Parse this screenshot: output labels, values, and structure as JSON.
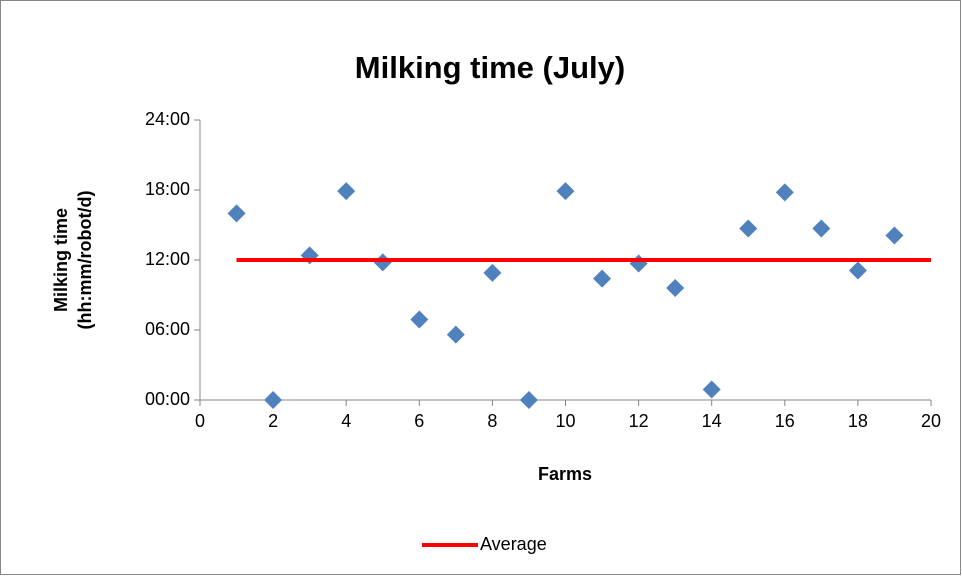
{
  "chart_data": {
    "type": "scatter",
    "title": "Milking time (July)",
    "x_label": "Farms",
    "y_label": [
      "Milking time",
      "(hh:mm/robot/d)"
    ],
    "xlim": [
      0,
      20
    ],
    "xticks": [
      0,
      2,
      4,
      6,
      8,
      10,
      12,
      14,
      16,
      18,
      20
    ],
    "ylim": [
      0,
      24
    ],
    "yticks": [
      {
        "value": 0,
        "label": "00:00"
      },
      {
        "value": 6,
        "label": "06:00"
      },
      {
        "value": 12,
        "label": "12:00"
      },
      {
        "value": 18,
        "label": "18:00"
      },
      {
        "value": 24,
        "label": "24:00"
      }
    ],
    "grid": false,
    "legend": "bottom",
    "series": [
      {
        "type": "scatter",
        "color": "#4f81bd",
        "x": [
          1,
          2,
          3,
          4,
          5,
          6,
          7,
          8,
          9,
          10,
          11,
          12,
          13,
          14,
          15,
          16,
          17,
          18,
          19
        ],
        "values": [
          16,
          0,
          12.4,
          17.9,
          11.8,
          6.9,
          5.6,
          10.9,
          0,
          17.9,
          10.4,
          11.7,
          9.6,
          0.9,
          14.7,
          17.8,
          14.7,
          11.1,
          14.1
        ]
      },
      {
        "type": "line",
        "name": "Average",
        "color": "#ff0000",
        "x": [
          1,
          20
        ],
        "values": [
          12,
          12
        ]
      }
    ]
  }
}
